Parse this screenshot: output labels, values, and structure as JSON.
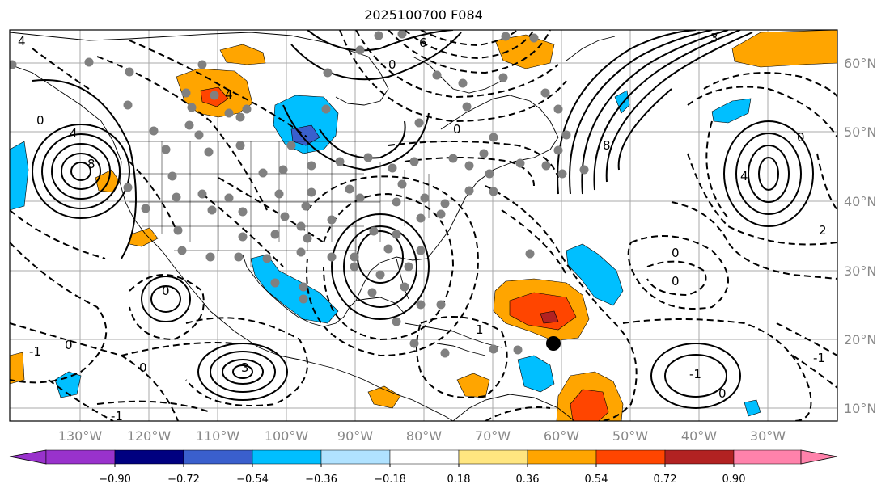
{
  "title": "2025100700 F084",
  "longitude_labels": [
    "130°W",
    "120°W",
    "110°W",
    "100°W",
    "90°W",
    "80°W",
    "70°W",
    "60°W",
    "50°W",
    "40°W",
    "30°W"
  ],
  "latitude_labels": [
    "60°N",
    "50°N",
    "40°N",
    "30°N",
    "20°N",
    "10°N"
  ],
  "contour_labels": [
    "4",
    "0",
    "4",
    "8",
    "0",
    "4",
    "6",
    "0",
    "3",
    "0",
    "8",
    "4",
    "0",
    "0",
    "0",
    "-1",
    "3",
    "0",
    "-1",
    "1",
    "-1",
    "-1",
    "0",
    "2",
    "0"
  ],
  "colorbar": {
    "ticks": [
      "−0.90",
      "−0.72",
      "−0.54",
      "−0.36",
      "−0.18",
      "0.18",
      "0.36",
      "0.54",
      "0.72",
      "0.90"
    ],
    "colors": [
      "#9932cc",
      "#000080",
      "#3a5fcd",
      "#00bfff",
      "#b0e2ff",
      "#ffffff",
      "#ffe680",
      "#ffa500",
      "#ff4500",
      "#b22222",
      "#ff82ab"
    ]
  },
  "colors": {
    "positive_weak": "#ffa500",
    "positive_strong": "#ff4500",
    "positive_max": "#b22222",
    "negative": "#00bfff",
    "negative_strong": "#3a5fcd",
    "station_dot": "#808080",
    "storm_marker": "#000000"
  }
}
